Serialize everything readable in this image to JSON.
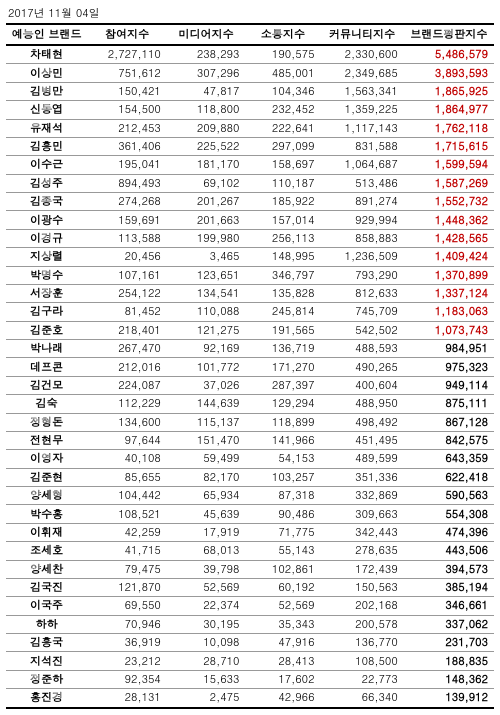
{
  "date_label": "2017년 11월 04일",
  "headers": [
    "예능인 브랜드",
    "참여지수",
    "미디어지수",
    "소통지수",
    "커뮤니티지수",
    "브랜드평판지수"
  ],
  "red_threshold": 1000000,
  "rows": [
    {
      "name": "차태현",
      "c1": "2,727,110",
      "c2": "238,293",
      "c3": "190,575",
      "c4": "2,330,600",
      "brand": "5,486,579",
      "red": true
    },
    {
      "name": "이상민",
      "c1": "751,612",
      "c2": "307,296",
      "c3": "485,001",
      "c4": "2,349,685",
      "brand": "3,893,593",
      "red": true
    },
    {
      "name": "김병만",
      "c1": "150,421",
      "c2": "47,817",
      "c3": "104,346",
      "c4": "1,563,341",
      "brand": "1,865,925",
      "red": true
    },
    {
      "name": "신동엽",
      "c1": "154,500",
      "c2": "118,800",
      "c3": "232,452",
      "c4": "1,359,225",
      "brand": "1,864,977",
      "red": true
    },
    {
      "name": "유재석",
      "c1": "212,453",
      "c2": "209,880",
      "c3": "222,641",
      "c4": "1,117,143",
      "brand": "1,762,118",
      "red": true
    },
    {
      "name": "김흥민",
      "c1": "361,406",
      "c2": "225,522",
      "c3": "297,099",
      "c4": "831,588",
      "brand": "1,715,615",
      "red": true
    },
    {
      "name": "이수근",
      "c1": "195,041",
      "c2": "181,170",
      "c3": "158,697",
      "c4": "1,064,687",
      "brand": "1,599,594",
      "red": true
    },
    {
      "name": "김성주",
      "c1": "894,493",
      "c2": "69,102",
      "c3": "110,187",
      "c4": "513,486",
      "brand": "1,587,269",
      "red": true
    },
    {
      "name": "김종국",
      "c1": "274,268",
      "c2": "201,267",
      "c3": "185,922",
      "c4": "891,274",
      "brand": "1,552,732",
      "red": true
    },
    {
      "name": "이광수",
      "c1": "159,691",
      "c2": "201,663",
      "c3": "157,014",
      "c4": "929,994",
      "brand": "1,448,362",
      "red": true
    },
    {
      "name": "이경규",
      "c1": "113,588",
      "c2": "199,980",
      "c3": "256,113",
      "c4": "858,883",
      "brand": "1,428,565",
      "red": true
    },
    {
      "name": "지상렬",
      "c1": "20,456",
      "c2": "3,465",
      "c3": "148,995",
      "c4": "1,236,509",
      "brand": "1,409,424",
      "red": true
    },
    {
      "name": "박명수",
      "c1": "107,161",
      "c2": "123,651",
      "c3": "346,797",
      "c4": "793,290",
      "brand": "1,370,899",
      "red": true
    },
    {
      "name": "서장훈",
      "c1": "254,122",
      "c2": "134,541",
      "c3": "135,828",
      "c4": "812,633",
      "brand": "1,337,124",
      "red": true
    },
    {
      "name": "김구라",
      "c1": "81,452",
      "c2": "110,088",
      "c3": "245,814",
      "c4": "745,709",
      "brand": "1,183,063",
      "red": true
    },
    {
      "name": "김준호",
      "c1": "218,401",
      "c2": "121,275",
      "c3": "191,565",
      "c4": "542,502",
      "brand": "1,073,743",
      "red": true
    },
    {
      "name": "박나래",
      "c1": "267,470",
      "c2": "92,169",
      "c3": "136,719",
      "c4": "488,593",
      "brand": "984,951",
      "red": false
    },
    {
      "name": "데프콘",
      "c1": "212,016",
      "c2": "101,772",
      "c3": "171,270",
      "c4": "490,265",
      "brand": "975,323",
      "red": false
    },
    {
      "name": "김건모",
      "c1": "224,087",
      "c2": "37,026",
      "c3": "287,397",
      "c4": "400,604",
      "brand": "949,114",
      "red": false
    },
    {
      "name": "김숙",
      "c1": "112,229",
      "c2": "144,639",
      "c3": "129,294",
      "c4": "488,950",
      "brand": "875,111",
      "red": false
    },
    {
      "name": "정형돈",
      "c1": "134,600",
      "c2": "115,137",
      "c3": "118,899",
      "c4": "498,492",
      "brand": "867,128",
      "red": false
    },
    {
      "name": "전현무",
      "c1": "97,644",
      "c2": "151,470",
      "c3": "141,966",
      "c4": "451,495",
      "brand": "842,575",
      "red": false
    },
    {
      "name": "이영자",
      "c1": "40,108",
      "c2": "59,499",
      "c3": "54,153",
      "c4": "489,599",
      "brand": "643,359",
      "red": false
    },
    {
      "name": "김준현",
      "c1": "85,655",
      "c2": "82,170",
      "c3": "103,257",
      "c4": "351,336",
      "brand": "622,418",
      "red": false
    },
    {
      "name": "양세형",
      "c1": "104,442",
      "c2": "65,934",
      "c3": "87,318",
      "c4": "332,869",
      "brand": "590,563",
      "red": false
    },
    {
      "name": "박수홍",
      "c1": "108,521",
      "c2": "45,639",
      "c3": "90,486",
      "c4": "309,663",
      "brand": "554,308",
      "red": false
    },
    {
      "name": "이휘재",
      "c1": "42,259",
      "c2": "17,919",
      "c3": "71,775",
      "c4": "342,443",
      "brand": "474,396",
      "red": false
    },
    {
      "name": "조세호",
      "c1": "41,715",
      "c2": "68,013",
      "c3": "55,143",
      "c4": "278,635",
      "brand": "443,506",
      "red": false
    },
    {
      "name": "양세찬",
      "c1": "79,475",
      "c2": "39,798",
      "c3": "102,861",
      "c4": "172,439",
      "brand": "394,573",
      "red": false
    },
    {
      "name": "김국진",
      "c1": "121,870",
      "c2": "52,569",
      "c3": "60,192",
      "c4": "150,563",
      "brand": "385,194",
      "red": false
    },
    {
      "name": "이국주",
      "c1": "69,550",
      "c2": "22,374",
      "c3": "52,569",
      "c4": "202,168",
      "brand": "346,661",
      "red": false
    },
    {
      "name": "하하",
      "c1": "70,946",
      "c2": "30,195",
      "c3": "35,343",
      "c4": "200,578",
      "brand": "337,062",
      "red": false
    },
    {
      "name": "김흥국",
      "c1": "36,919",
      "c2": "10,098",
      "c3": "47,916",
      "c4": "136,770",
      "brand": "231,703",
      "red": false
    },
    {
      "name": "지석진",
      "c1": "23,212",
      "c2": "28,710",
      "c3": "28,413",
      "c4": "108,500",
      "brand": "188,835",
      "red": false
    },
    {
      "name": "정준하",
      "c1": "92,354",
      "c2": "15,633",
      "c3": "17,602",
      "c4": "22,773",
      "brand": "148,362",
      "red": false
    },
    {
      "name": "홍진경",
      "c1": "28,131",
      "c2": "2,475",
      "c3": "42,966",
      "c4": "66,340",
      "brand": "139,912",
      "red": false
    }
  ]
}
